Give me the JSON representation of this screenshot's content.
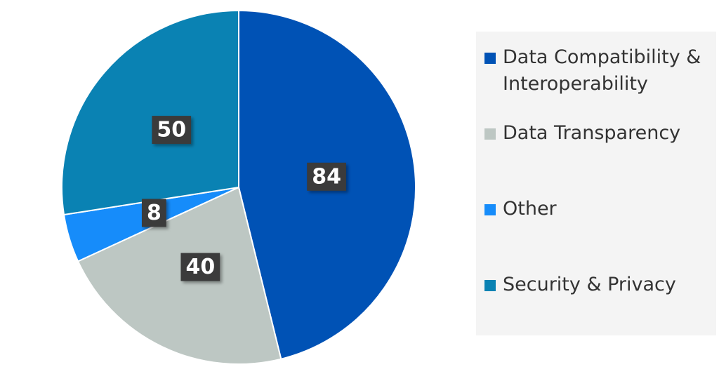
{
  "chart_data": {
    "type": "pie",
    "categories": [
      "Data Compatibility & Interoperability",
      "Data Transparency",
      "Other",
      "Security & Privacy"
    ],
    "values": [
      84,
      40,
      8,
      50
    ],
    "colors": [
      "#0052b5",
      "#bdc7c3",
      "#168cfa",
      "#0a82b3"
    ],
    "legend": "right"
  }
}
